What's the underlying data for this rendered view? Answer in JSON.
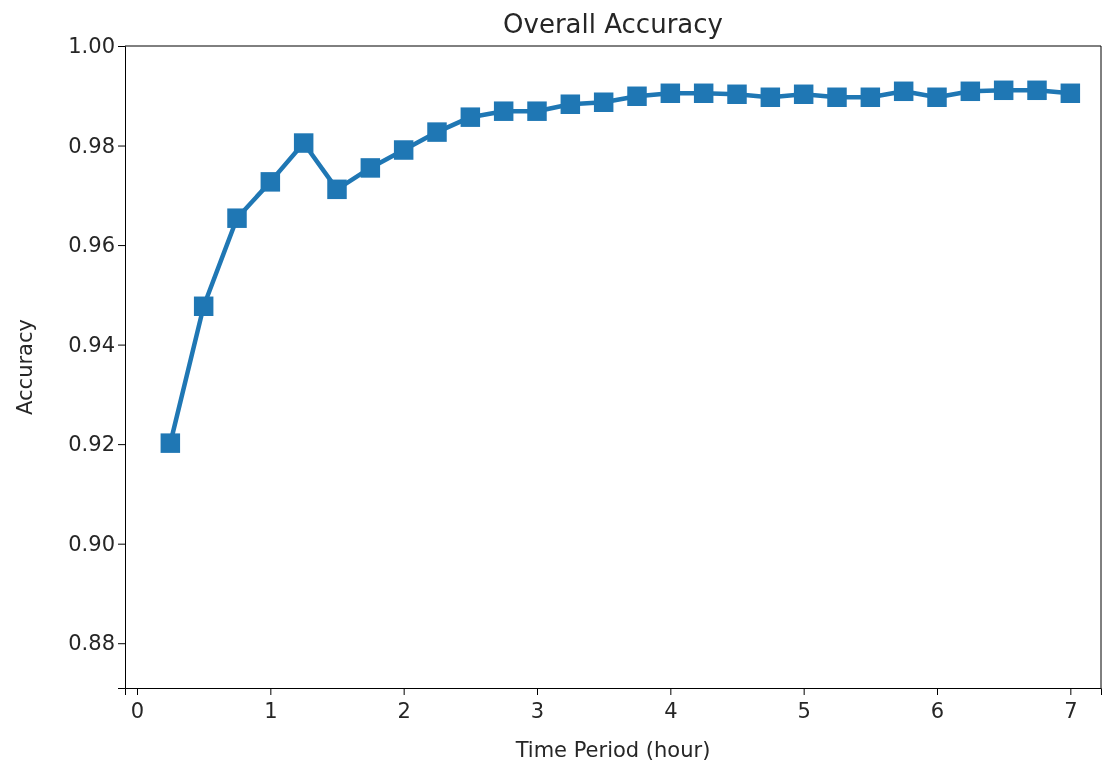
{
  "chart_data": {
    "type": "line",
    "title": "Overall Accuracy",
    "xlabel": "Time Period (hour)",
    "ylabel": "Accuracy",
    "x": [
      0.25,
      0.5,
      0.75,
      1,
      1.25,
      1.5,
      1.75,
      2,
      2.25,
      2.5,
      2.75,
      3,
      3.25,
      3.5,
      3.75,
      4,
      4.25,
      4.5,
      4.75,
      5,
      5.25,
      5.5,
      5.75,
      6,
      6.25,
      6.5,
      6.75,
      7
    ],
    "series": [
      {
        "color": "#1f77b4",
        "values": [
          0.9202,
          0.9477,
          0.9654,
          0.9727,
          0.9805,
          0.9712,
          0.9755,
          0.9791,
          0.9827,
          0.9857,
          0.9869,
          0.9869,
          0.9883,
          0.9887,
          0.9899,
          0.9905,
          0.9905,
          0.9903,
          0.9897,
          0.9903,
          0.9897,
          0.9897,
          0.9909,
          0.9897,
          0.9909,
          0.9911,
          0.9911,
          0.9905
        ]
      }
    ],
    "xlim": [
      -0.09,
      7.23
    ],
    "ylim": [
      0.871,
      1.0
    ],
    "xticks": [
      0,
      1,
      2,
      3,
      4,
      5,
      6,
      7
    ],
    "yticks": [
      {
        "value": 0.88,
        "label": "0.88"
      },
      {
        "value": 0.9,
        "label": "0.90"
      },
      {
        "value": 0.92,
        "label": "0.92"
      },
      {
        "value": 0.94,
        "label": "0.94"
      },
      {
        "value": 0.96,
        "label": "0.96"
      },
      {
        "value": 0.98,
        "label": "0.98"
      },
      {
        "value": 1.0,
        "label": "1.00"
      }
    ],
    "marker": "square",
    "line_style": "solid"
  }
}
